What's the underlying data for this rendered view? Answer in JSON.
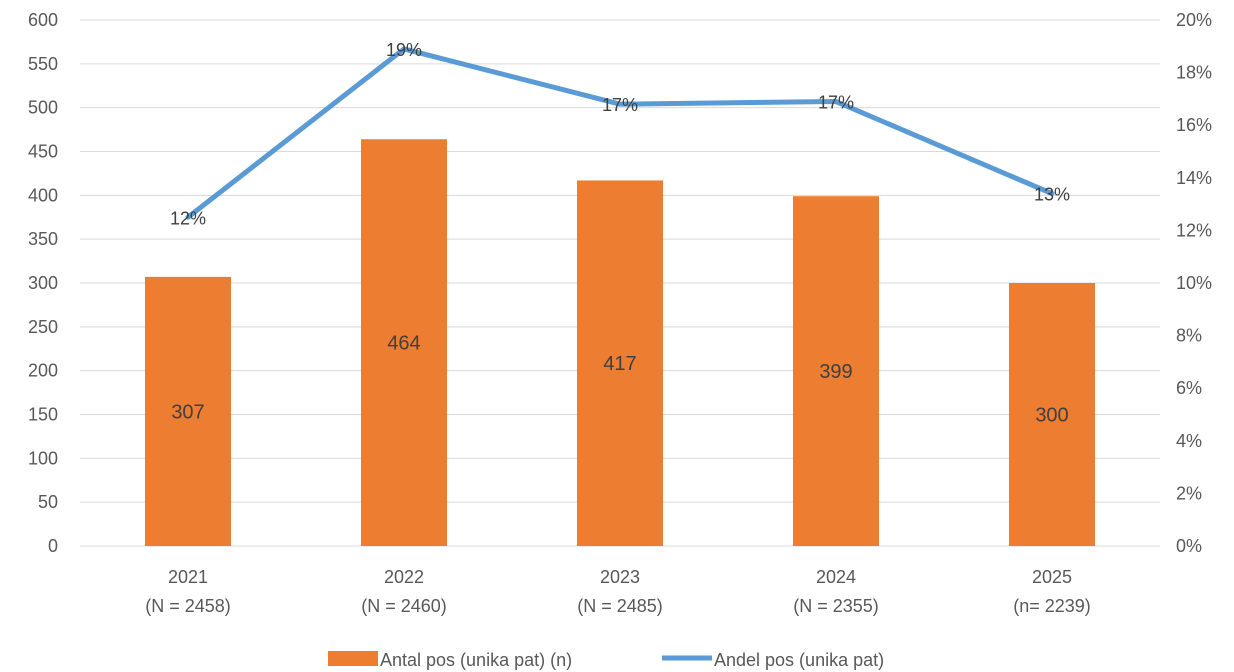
{
  "chart_data": {
    "type": "bar",
    "categories": [
      "2021",
      "2022",
      "2023",
      "2024",
      "2025"
    ],
    "category_notes": [
      "(N = 2458)",
      "(N = 2460)",
      "(N = 2485)",
      "(N = 2355)",
      "(n= 2239)"
    ],
    "y_left": {
      "min": 0,
      "max": 600,
      "step": 50
    },
    "y_right": {
      "min": 0,
      "max": 20,
      "step": 2,
      "suffix": "%"
    },
    "grid": true,
    "legend_position": "bottom",
    "series": [
      {
        "name": "Antal pos (unika pat) (n)",
        "type": "bar",
        "axis": "left",
        "color": "#ED7D31",
        "values": [
          307,
          464,
          417,
          399,
          300
        ],
        "labels": [
          "307",
          "464",
          "417",
          "399",
          "300"
        ]
      },
      {
        "name": "Andel pos (unika pat)",
        "type": "line",
        "axis": "right",
        "color": "#5B9BD5",
        "values": [
          12.5,
          18.9,
          16.8,
          16.9,
          13.4
        ],
        "labels": [
          "12%",
          "19%",
          "17%",
          "17%",
          "13%"
        ]
      }
    ]
  }
}
